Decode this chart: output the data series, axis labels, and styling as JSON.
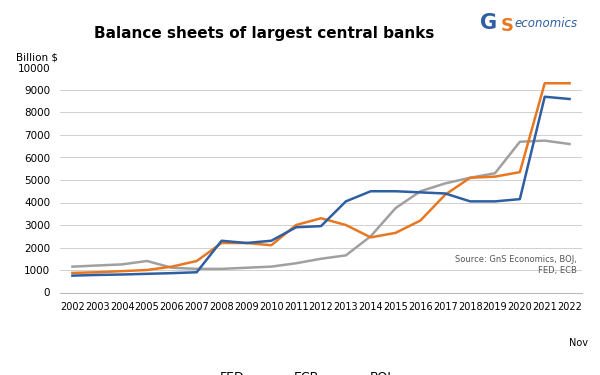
{
  "title": "Balance sheets of largest central banks",
  "ylabel": "Billion $",
  "source_text": "Source: GnS Economics, BOJ,\nFED, ECB",
  "ylim": [
    0,
    10000
  ],
  "yticks": [
    0,
    1000,
    2000,
    3000,
    4000,
    5000,
    6000,
    7000,
    8000,
    9000,
    10000
  ],
  "years": [
    2002,
    2003,
    2004,
    2005,
    2006,
    2007,
    2008,
    2009,
    2010,
    2011,
    2012,
    2013,
    2014,
    2015,
    2016,
    2017,
    2018,
    2019,
    2020,
    2021,
    2022
  ],
  "FED": [
    750,
    780,
    800,
    830,
    860,
    900,
    2300,
    2200,
    2300,
    2900,
    2950,
    4050,
    4500,
    4500,
    4450,
    4400,
    4050,
    4050,
    4150,
    8700,
    8600
  ],
  "ECB": [
    870,
    900,
    950,
    1000,
    1150,
    1400,
    2200,
    2200,
    2100,
    3000,
    3300,
    3000,
    2450,
    2650,
    3200,
    4350,
    5100,
    5150,
    5350,
    9300,
    9300
  ],
  "BOJ": [
    1150,
    1200,
    1250,
    1400,
    1100,
    1050,
    1050,
    1100,
    1150,
    1300,
    1500,
    1650,
    2500,
    3750,
    4500,
    4850,
    5100,
    5300,
    6700,
    6750,
    6600
  ],
  "FED_color": "#2E5FA3",
  "ECB_color": "#E87722",
  "BOJ_color": "#A0A0A0",
  "bg_color": "#FFFFFF",
  "grid_color": "#D0D0D0",
  "line_width": 1.8,
  "xlim_start": 2001.5,
  "xlim_end": 2022.5,
  "logo_G_color": "#2E5FA3",
  "logo_S_color": "#E87722",
  "logo_text_color": "#2E5FA3"
}
